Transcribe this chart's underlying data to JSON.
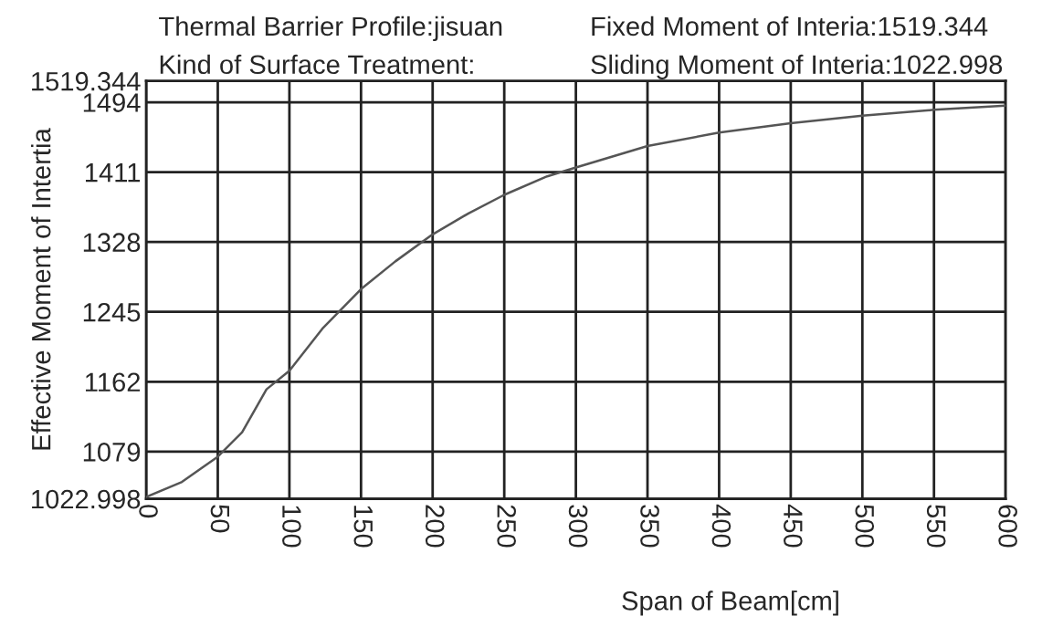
{
  "chart_data": {
    "type": "line",
    "annotations": [
      "Thermal Barrier Profile:jisuan",
      "Kind of Surface Treatment:",
      "Fixed Moment of Interia:1519.344",
      "Sliding Moment of Interia:1022.998"
    ],
    "xlabel": "Span of Beam[cm]",
    "ylabel": "Effective Moment of Intertia",
    "series": [
      {
        "color": "#555555",
        "x": [
          0,
          25,
          50,
          67,
          84,
          100,
          123,
          150,
          174,
          200,
          225,
          250,
          280,
          299,
          350,
          400,
          450,
          500,
          550,
          600
        ],
        "values": [
          1025,
          1043,
          1073,
          1102,
          1153,
          1175,
          1225,
          1272,
          1305,
          1337,
          1362,
          1384,
          1406,
          1416,
          1442,
          1458,
          1469,
          1478,
          1485,
          1490
        ]
      }
    ],
    "xlim": [
      0,
      600
    ],
    "xticks": [
      0,
      50,
      100,
      150,
      200,
      250,
      300,
      350,
      400,
      450,
      500,
      550,
      600
    ],
    "ylim": [
      1022.998,
      1519.344
    ],
    "yticks": [
      {
        "value": 1022.998,
        "label": "1022.998"
      },
      1079,
      1162,
      1245,
      1328,
      1411,
      1494,
      {
        "value": 1519.344,
        "label": "1519.344"
      }
    ],
    "grid": true,
    "line_style": "solid",
    "marker": "none",
    "legend": false
  }
}
